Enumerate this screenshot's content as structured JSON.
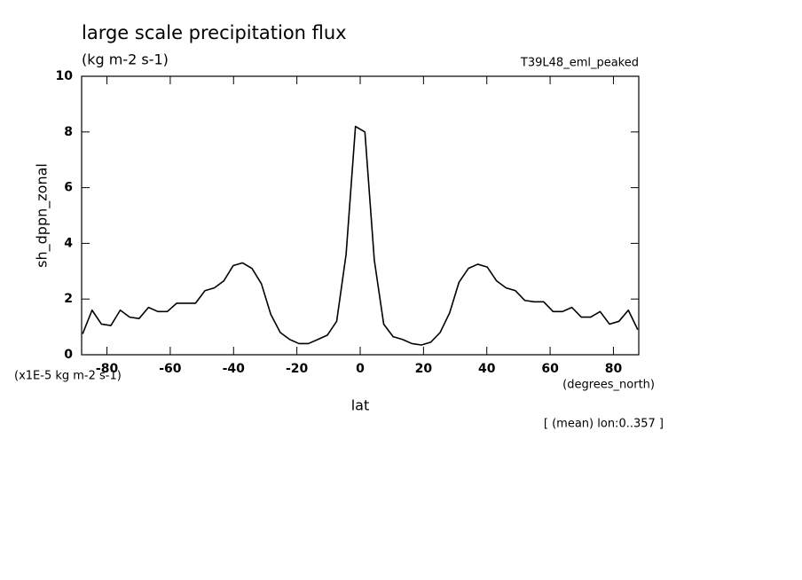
{
  "chart_data": {
    "type": "line",
    "title": "large scale precipitation flux",
    "subtitle": "(kg m-2 s-1)",
    "dataset": "T39L48_eml_peaked",
    "ylabel": "sh_dppn_zonal",
    "yunits": "(x1E-5 kg m-2 s-1)",
    "xlabel": "lat",
    "xunits": "(degrees_north)",
    "note": "[ (mean) lon:0..357 ]",
    "color": "#000000",
    "x": [
      -87.68,
      -84.71,
      -81.74,
      -78.76,
      -75.79,
      -72.82,
      -69.85,
      -66.87,
      -63.9,
      -60.93,
      -57.96,
      -54.99,
      -52.01,
      -49.04,
      -46.07,
      -43.1,
      -40.12,
      -37.15,
      -34.18,
      -31.21,
      -28.24,
      -25.26,
      -22.29,
      -19.32,
      -16.35,
      -13.37,
      -10.4,
      -7.43,
      -4.46,
      -1.49,
      1.49,
      4.46,
      7.43,
      10.4,
      13.37,
      16.35,
      19.32,
      22.29,
      25.26,
      28.24,
      31.21,
      34.18,
      37.15,
      40.12,
      43.1,
      46.07,
      49.04,
      52.01,
      54.99,
      57.96,
      60.93,
      63.9,
      66.87,
      69.85,
      72.82,
      75.79,
      78.76,
      81.74,
      84.71,
      87.68
    ],
    "values": [
      0.75,
      1.6,
      1.1,
      1.05,
      1.6,
      1.35,
      1.3,
      1.7,
      1.55,
      1.55,
      1.85,
      1.85,
      1.85,
      2.3,
      2.4,
      2.65,
      3.2,
      3.3,
      3.1,
      2.55,
      1.45,
      0.8,
      0.55,
      0.4,
      0.4,
      0.55,
      0.7,
      1.2,
      3.6,
      8.2,
      8.0,
      3.4,
      1.1,
      0.65,
      0.55,
      0.4,
      0.35,
      0.45,
      0.8,
      1.5,
      2.6,
      3.1,
      3.25,
      3.15,
      2.65,
      2.4,
      2.3,
      1.95,
      1.9,
      1.9,
      1.55,
      1.55,
      1.7,
      1.35,
      1.35,
      1.55,
      1.1,
      1.2,
      1.6,
      0.9
    ],
    "xlim": [
      -88,
      88
    ],
    "xticks": [
      -80,
      -60,
      -40,
      -20,
      0,
      20,
      40,
      60,
      80
    ],
    "ylim": [
      0,
      10
    ],
    "yticks": [
      0,
      2,
      4,
      6,
      8,
      10
    ]
  }
}
